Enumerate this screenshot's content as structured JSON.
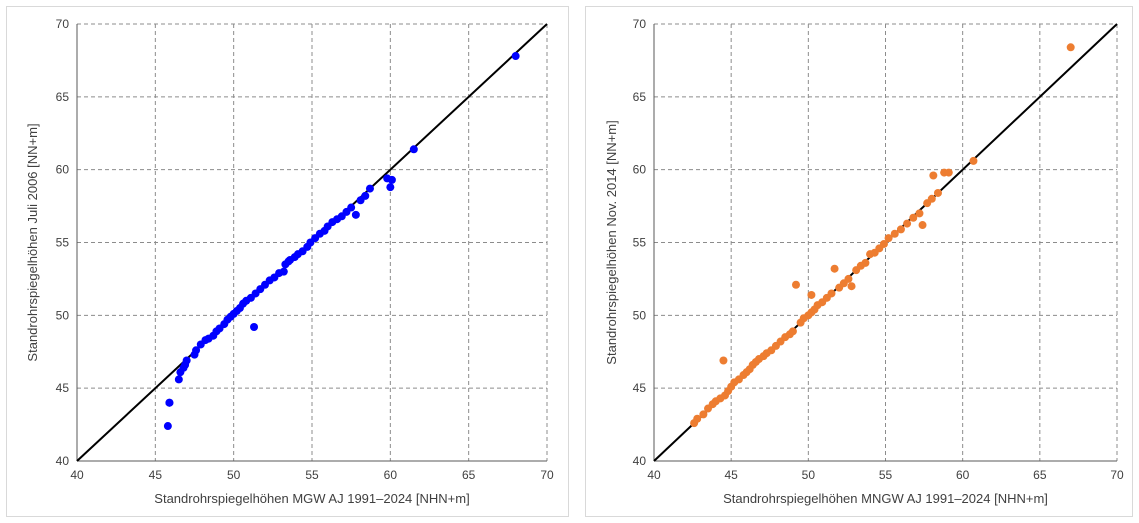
{
  "chart_data": [
    {
      "type": "scatter",
      "xlabel": "Standrohrspiegelhöhen MGW AJ 1991–2024 [NHN+m]",
      "ylabel": "Standrohrspiegelhöhen Juli 2006 [NN+m]",
      "xlim": [
        40,
        70
      ],
      "ylim": [
        40,
        70
      ],
      "x_ticks": [
        "40",
        "45",
        "50",
        "55",
        "60",
        "65",
        "70"
      ],
      "y_ticks": [
        "40",
        "45",
        "50",
        "55",
        "60",
        "65",
        "70"
      ],
      "grid": true,
      "reference_line": "1:1",
      "marker_color": "#0000ff",
      "line_color": "#000000",
      "series": [
        {
          "x": [
            45.8,
            45.9,
            45.9,
            46.5,
            46.6,
            46.8,
            46.9,
            47.0,
            47.5,
            47.6,
            47.9,
            48.2,
            48.4,
            48.7,
            48.9,
            49.1,
            49.4,
            49.6,
            49.8,
            50.0,
            50.2,
            50.4,
            50.6,
            50.8,
            51.3,
            51.1,
            51.4,
            51.7,
            52.0,
            52.3,
            52.6,
            52.9,
            53.2,
            53.3,
            53.5,
            53.6,
            53.9,
            54.1,
            54.4,
            54.7,
            54.9,
            55.2,
            55.5,
            55.8,
            56.0,
            56.3,
            56.6,
            56.9,
            57.2,
            57.5,
            57.8,
            58.1,
            58.4,
            58.7,
            59.8,
            60.0,
            60.1,
            61.5,
            68.0
          ],
          "y": [
            42.4,
            44.0,
            44.0,
            45.6,
            46.1,
            46.4,
            46.6,
            46.9,
            47.3,
            47.6,
            48.0,
            48.3,
            48.4,
            48.6,
            48.9,
            49.1,
            49.4,
            49.7,
            49.9,
            50.1,
            50.3,
            50.5,
            50.8,
            51.0,
            49.2,
            51.2,
            51.5,
            51.8,
            52.1,
            52.4,
            52.6,
            52.9,
            53.0,
            53.5,
            53.7,
            53.8,
            54.0,
            54.2,
            54.4,
            54.7,
            55.0,
            55.3,
            55.6,
            55.8,
            56.1,
            56.4,
            56.6,
            56.8,
            57.1,
            57.4,
            56.9,
            57.9,
            58.2,
            58.7,
            59.4,
            58.8,
            59.3,
            61.4,
            67.8
          ]
        }
      ]
    },
    {
      "type": "scatter",
      "xlabel": "Standrohrspiegelhöhen MNGW AJ 1991–2024 [NHN+m]",
      "ylabel": "Standrohrspiegelhöhen Nov. 2014 [NN+m]",
      "xlim": [
        40,
        70
      ],
      "ylim": [
        40,
        70
      ],
      "x_ticks": [
        "40",
        "45",
        "50",
        "55",
        "60",
        "65",
        "70"
      ],
      "y_ticks": [
        "40",
        "45",
        "50",
        "55",
        "60",
        "65",
        "70"
      ],
      "grid": true,
      "reference_line": "1:1",
      "marker_color": "#ed7d31",
      "line_color": "#000000",
      "series": [
        {
          "x": [
            42.6,
            42.8,
            43.2,
            43.5,
            43.8,
            44.0,
            44.3,
            44.6,
            44.8,
            44.5,
            45.0,
            45.2,
            45.5,
            45.8,
            46.0,
            46.2,
            46.4,
            46.6,
            46.8,
            47.1,
            47.3,
            47.6,
            47.9,
            48.2,
            48.5,
            48.8,
            49.0,
            49.2,
            49.5,
            49.7,
            50.0,
            50.2,
            50.4,
            50.2,
            50.6,
            50.9,
            51.2,
            51.5,
            51.7,
            52.0,
            52.3,
            52.6,
            52.8,
            53.1,
            53.4,
            53.7,
            54.0,
            54.3,
            54.6,
            54.9,
            55.2,
            55.6,
            56.0,
            56.4,
            56.8,
            57.2,
            57.4,
            57.7,
            58.0,
            58.4,
            58.1,
            58.8,
            59.1,
            60.7,
            67.0
          ],
          "y": [
            42.6,
            42.9,
            43.2,
            43.6,
            43.9,
            44.1,
            44.3,
            44.5,
            44.8,
            46.9,
            45.1,
            45.4,
            45.6,
            45.9,
            46.1,
            46.3,
            46.6,
            46.8,
            47.0,
            47.2,
            47.4,
            47.6,
            47.9,
            48.2,
            48.5,
            48.7,
            48.9,
            52.1,
            49.5,
            49.8,
            50.0,
            50.2,
            50.4,
            51.4,
            50.7,
            50.9,
            51.2,
            51.5,
            53.2,
            51.9,
            52.2,
            52.5,
            52.0,
            53.1,
            53.4,
            53.6,
            54.2,
            54.3,
            54.6,
            54.9,
            55.3,
            55.6,
            55.9,
            56.3,
            56.7,
            57.0,
            56.2,
            57.7,
            58.0,
            58.4,
            59.6,
            59.8,
            59.8,
            60.6,
            68.4
          ]
        }
      ]
    }
  ]
}
